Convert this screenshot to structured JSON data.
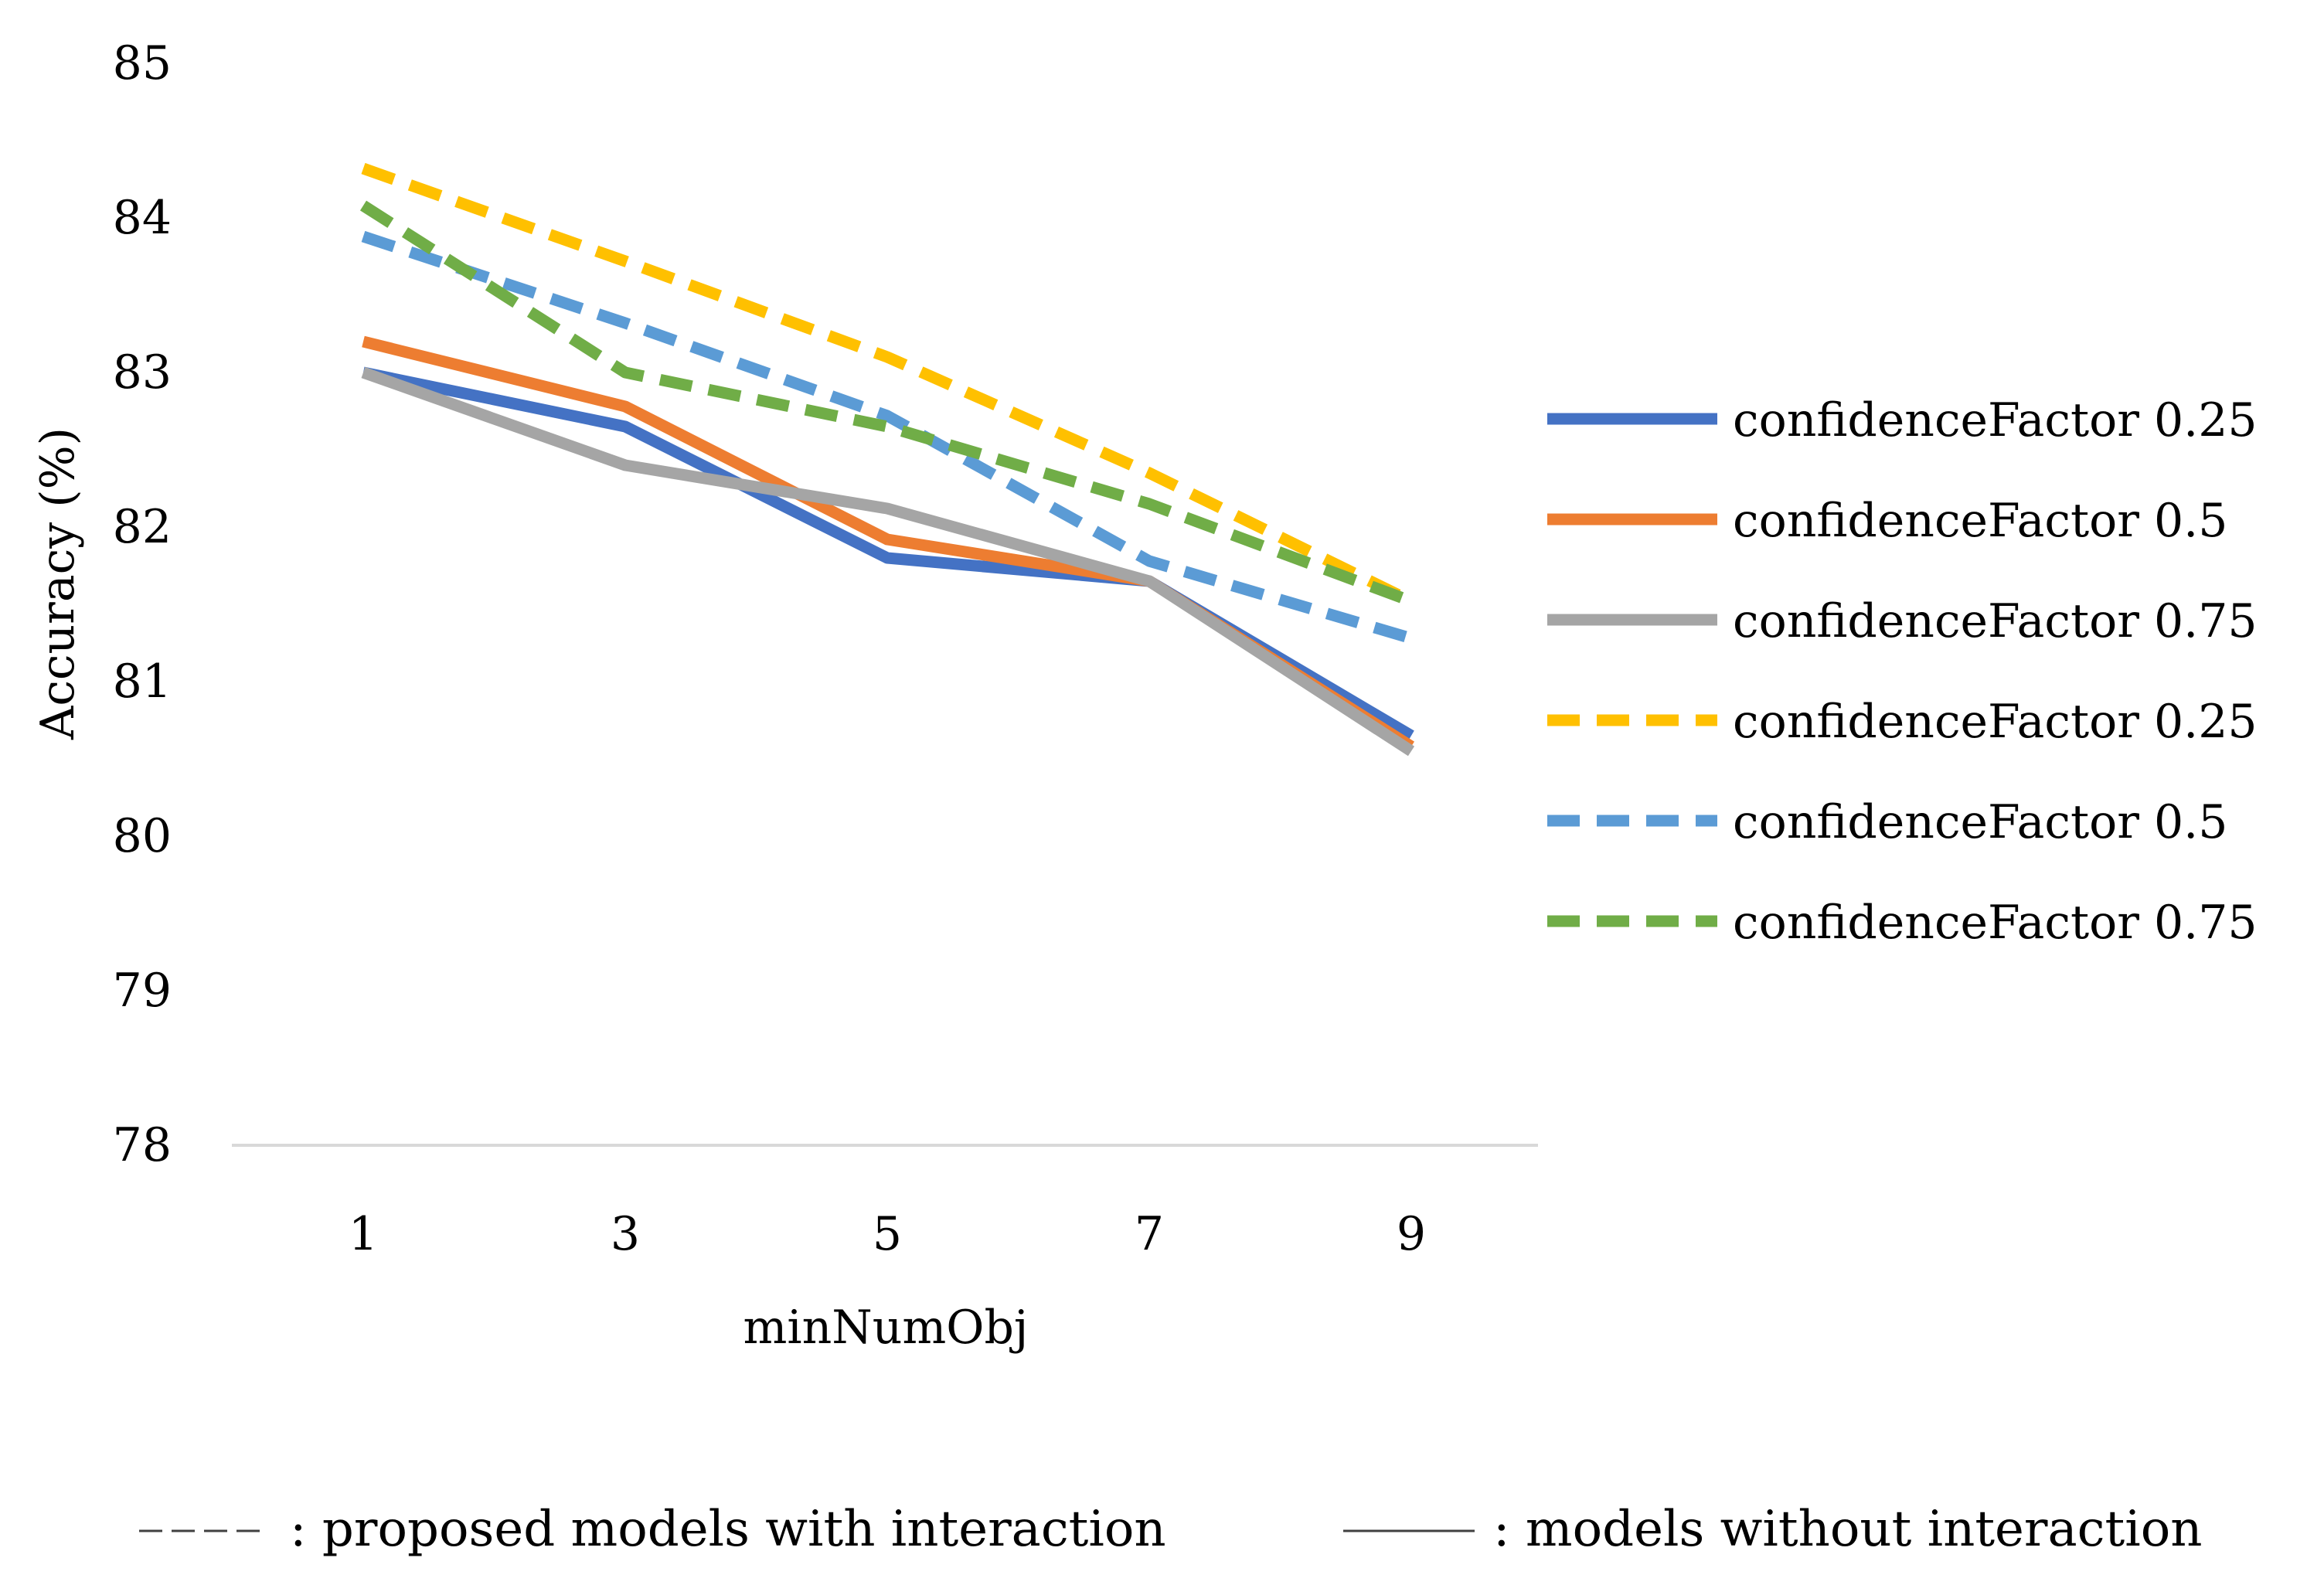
{
  "chart_data": {
    "type": "line",
    "title": "",
    "xlabel": "minNumObj",
    "ylabel": "Accuracy (%)",
    "categories": [
      "1",
      "3",
      "5",
      "7",
      "9"
    ],
    "ylim": [
      78,
      85
    ],
    "yticks": [
      "78",
      "79",
      "80",
      "81",
      "82",
      "83",
      "84",
      "85"
    ],
    "grid": false,
    "legend_position": "right",
    "series": [
      {
        "name": "confidenceFactor 0.25",
        "style": "solid",
        "color": "#4472C4",
        "values": [
          83.0,
          82.65,
          81.8,
          81.65,
          80.65
        ]
      },
      {
        "name": "confidenceFactor 0.5",
        "style": "solid",
        "color": "#ED7D31",
        "values": [
          83.2,
          82.78,
          81.92,
          81.65,
          80.58
        ]
      },
      {
        "name": "confidenceFactor 0.75",
        "style": "solid",
        "color": "#A5A5A5",
        "values": [
          83.0,
          82.4,
          82.12,
          81.65,
          80.55
        ]
      },
      {
        "name": "confidenceFactor 0.25",
        "style": "dashed",
        "color": "#FFC000",
        "values": [
          84.32,
          83.72,
          83.1,
          82.35,
          81.52
        ]
      },
      {
        "name": "confidenceFactor 0.5",
        "style": "dashed",
        "color": "#5B9BD5",
        "values": [
          83.88,
          83.32,
          82.72,
          81.78,
          81.28
        ]
      },
      {
        "name": "confidenceFactor 0.75",
        "style": "dashed",
        "color": "#70AD47",
        "values": [
          84.08,
          83.0,
          82.65,
          82.15,
          81.52
        ]
      }
    ],
    "note": {
      "dashed_label": ": proposed models with interaction",
      "solid_label": ": models without interaction"
    }
  }
}
